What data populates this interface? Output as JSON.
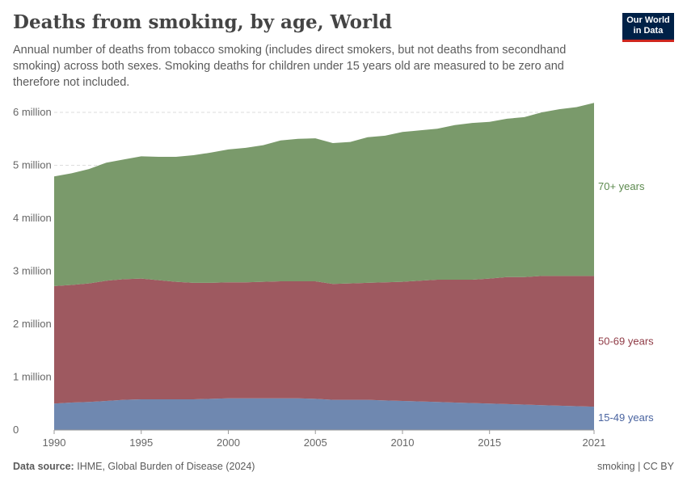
{
  "header": {
    "title": "Deaths from smoking, by age, World",
    "subtitle": "Annual number of deaths from tobacco smoking (includes direct smokers, but not deaths from secondhand smoking) across both sexes. Smoking deaths for children under 15 years old are measured to be zero and therefore not included.",
    "logo": "Our World in Data"
  },
  "footer": {
    "source_label": "Data source:",
    "source": "IHME, Global Burden of Disease (2024)",
    "license": "smoking | CC BY"
  },
  "chart_data": {
    "type": "area",
    "stacked": true,
    "xlim": [
      1990,
      2021
    ],
    "ylim": [
      0,
      6000000
    ],
    "grid": true,
    "x_ticks": [
      "1990",
      "1995",
      "2000",
      "2005",
      "2010",
      "2015",
      "2021"
    ],
    "y_ticks": [
      {
        "value": 0,
        "label": "0"
      },
      {
        "value": 1000000,
        "label": "1 million"
      },
      {
        "value": 2000000,
        "label": "2 million"
      },
      {
        "value": 3000000,
        "label": "3 million"
      },
      {
        "value": 4000000,
        "label": "4 million"
      },
      {
        "value": 5000000,
        "label": "5 million"
      },
      {
        "value": 6000000,
        "label": "6 million"
      }
    ],
    "x": [
      1990,
      1991,
      1992,
      1993,
      1994,
      1995,
      1996,
      1997,
      1998,
      1999,
      2000,
      2001,
      2002,
      2003,
      2004,
      2005,
      2006,
      2007,
      2008,
      2009,
      2010,
      2011,
      2012,
      2013,
      2014,
      2015,
      2016,
      2017,
      2018,
      2019,
      2020,
      2021
    ],
    "series": [
      {
        "name": "15-49 years",
        "color": "#6f88b0",
        "label_color": "#4a64a0",
        "values_million": [
          0.5,
          0.52,
          0.53,
          0.55,
          0.57,
          0.58,
          0.58,
          0.58,
          0.58,
          0.59,
          0.6,
          0.6,
          0.6,
          0.6,
          0.6,
          0.59,
          0.57,
          0.57,
          0.57,
          0.56,
          0.55,
          0.54,
          0.53,
          0.52,
          0.51,
          0.5,
          0.49,
          0.48,
          0.47,
          0.46,
          0.45,
          0.44
        ]
      },
      {
        "name": "50-69 years",
        "color": "#9e5960",
        "label_color": "#8f3a45",
        "values_million": [
          2.22,
          2.22,
          2.24,
          2.27,
          2.28,
          2.28,
          2.25,
          2.22,
          2.2,
          2.19,
          2.19,
          2.19,
          2.2,
          2.21,
          2.21,
          2.22,
          2.19,
          2.2,
          2.21,
          2.23,
          2.25,
          2.28,
          2.31,
          2.32,
          2.33,
          2.36,
          2.4,
          2.41,
          2.44,
          2.45,
          2.46,
          2.47
        ]
      },
      {
        "name": "70+ years",
        "color": "#7a9a6b",
        "label_color": "#5c8a4e",
        "values_million": [
          2.07,
          2.11,
          2.16,
          2.23,
          2.26,
          2.31,
          2.33,
          2.36,
          2.41,
          2.46,
          2.51,
          2.54,
          2.58,
          2.66,
          2.69,
          2.7,
          2.66,
          2.67,
          2.75,
          2.77,
          2.83,
          2.84,
          2.85,
          2.92,
          2.96,
          2.96,
          2.99,
          3.02,
          3.09,
          3.15,
          3.19,
          3.27
        ]
      }
    ]
  }
}
